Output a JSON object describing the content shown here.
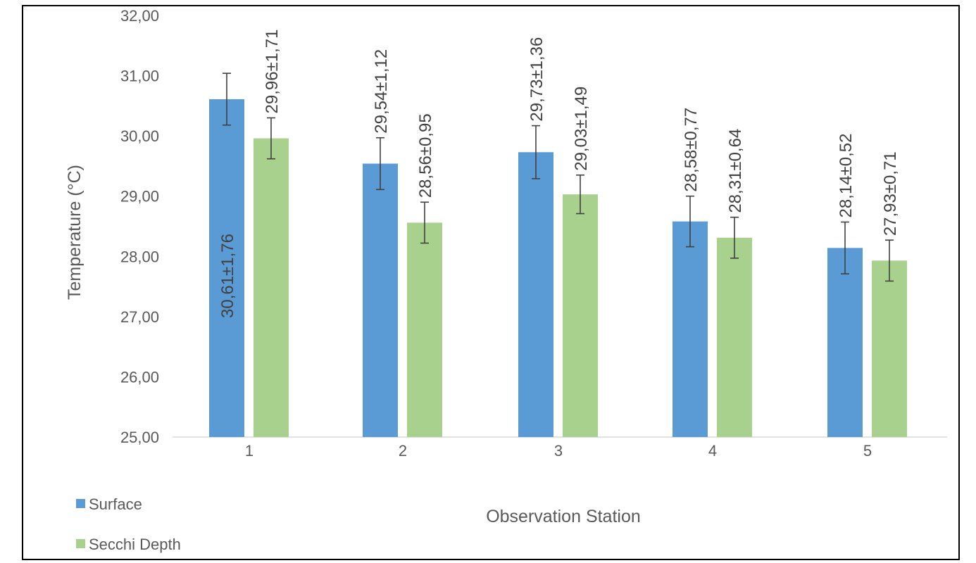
{
  "chart_data": {
    "type": "bar",
    "categories": [
      "1",
      "2",
      "3",
      "4",
      "5"
    ],
    "series": [
      {
        "name": "Surface",
        "color": "#5B9BD5",
        "values": [
          30.61,
          29.54,
          29.73,
          28.58,
          28.14
        ],
        "error": [
          0.43,
          0.43,
          0.44,
          0.42,
          0.43
        ],
        "labels": [
          "30,61±1,76",
          "29,54±1,12",
          "29,73±1,36",
          "28,58±0,77",
          "28,14±0,52"
        ]
      },
      {
        "name": "Secchi Depth",
        "color": "#A9D18E",
        "values": [
          29.96,
          28.56,
          29.03,
          28.31,
          27.93
        ],
        "error": [
          0.34,
          0.34,
          0.32,
          0.34,
          0.34
        ],
        "labels": [
          "29,96±1,71",
          "28,56±0,95",
          "29,03±1,49",
          "28,31±0,64",
          "27,93±0,71"
        ]
      }
    ],
    "xlabel": "Observation Station",
    "ylabel": "Temperature (°C)",
    "ylim": [
      25,
      32
    ],
    "yticks": [
      "25,00",
      "26,00",
      "27,00",
      "28,00",
      "29,00",
      "30,00",
      "31,00",
      "32,00"
    ],
    "grid": false,
    "legend": "bottom-left"
  }
}
